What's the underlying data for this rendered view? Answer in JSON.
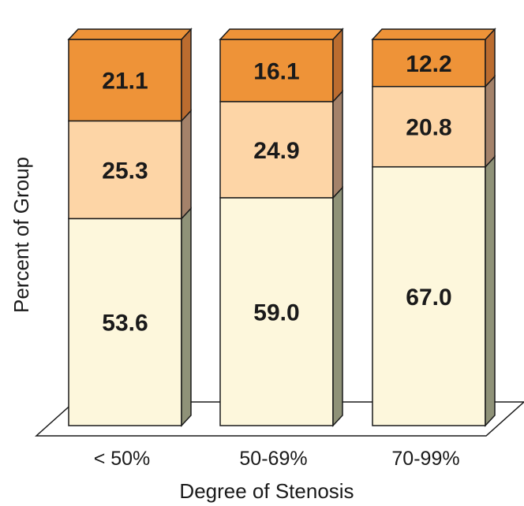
{
  "chart_data": {
    "type": "bar",
    "stacked": true,
    "style": "3d",
    "categories": [
      "< 50%",
      "50-69%",
      "70-99%"
    ],
    "series": [
      {
        "values": [
          53.6,
          59.0,
          67.0
        ],
        "color": "#fdf7dc",
        "side_color": "#8f9278"
      },
      {
        "values": [
          25.3,
          24.9,
          20.8
        ],
        "color": "#fdd5a6",
        "side_color": "#a4826a"
      },
      {
        "values": [
          21.1,
          16.1,
          12.2
        ],
        "color": "#ee9338",
        "side_color": "#bb6c2f"
      }
    ],
    "xlabel": "Degree of Stenosis",
    "ylabel": "Percent of Group",
    "ylim": [
      0,
      100
    ],
    "grid": false,
    "legend": "none"
  }
}
